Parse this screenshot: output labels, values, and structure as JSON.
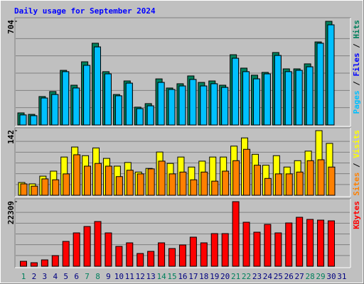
{
  "chart_data": [
    {
      "type": "bar",
      "title": "Daily usage for September 2024",
      "legend_separator": " / ",
      "ylim": [
        0,
        704
      ],
      "yticks": [
        704
      ],
      "series": [
        {
          "name": "Hits",
          "color": "#00805c",
          "values": [
            82,
            72,
            193,
            227,
            371,
            270,
            429,
            555,
            362,
            207,
            299,
            121,
            145,
            313,
            251,
            280,
            333,
            289,
            299,
            270,
            477,
            386,
            338,
            357,
            492,
            381,
            381,
            415,
            564,
            704,
            0
          ]
        },
        {
          "name": "Files",
          "color": "#0000ff",
          "values": [
            68,
            63,
            183,
            207,
            362,
            251,
            405,
            530,
            347,
            198,
            284,
            111,
            130,
            289,
            241,
            265,
            309,
            265,
            280,
            255,
            453,
            362,
            313,
            347,
            472,
            362,
            371,
            395,
            555,
            680,
            0
          ]
        },
        {
          "name": "Pages",
          "color": "#00c0ff",
          "values": [
            68,
            63,
            183,
            207,
            362,
            251,
            405,
            530,
            347,
            198,
            284,
            111,
            130,
            289,
            241,
            265,
            309,
            265,
            280,
            255,
            453,
            362,
            313,
            347,
            472,
            362,
            371,
            395,
            555,
            680,
            0
          ]
        }
      ]
    },
    {
      "type": "bar",
      "legend_separator": " / ",
      "ylim": [
        0,
        142
      ],
      "yticks": [
        142
      ],
      "series": [
        {
          "name": "Visits",
          "color": "#ffff00",
          "values": [
            28,
            25,
            42,
            53,
            84,
            106,
            87,
            104,
            81,
            64,
            72,
            51,
            59,
            95,
            70,
            84,
            62,
            75,
            84,
            84,
            108,
            126,
            90,
            66,
            87,
            62,
            76,
            97,
            142,
            114,
            0
          ]
        },
        {
          "name": "Sites",
          "color": "#ff8000",
          "values": [
            25,
            20,
            36,
            34,
            47,
            89,
            64,
            70,
            64,
            41,
            55,
            47,
            58,
            75,
            47,
            51,
            34,
            51,
            31,
            53,
            76,
            101,
            66,
            37,
            47,
            47,
            51,
            76,
            78,
            62,
            0
          ]
        }
      ]
    },
    {
      "type": "bar",
      "ylim": [
        0,
        22309
      ],
      "yticks": [
        22309
      ],
      "categories": [
        "1",
        "2",
        "3",
        "4",
        "5",
        "6",
        "7",
        "8",
        "9",
        "10",
        "11",
        "12",
        "13",
        "14",
        "15",
        "16",
        "17",
        "18",
        "19",
        "20",
        "21",
        "22",
        "23",
        "24",
        "25",
        "26",
        "27",
        "28",
        "29",
        "30",
        "31"
      ],
      "category_colors": [
        "#00805c",
        "#000080",
        "#000080",
        "#000080",
        "#000080",
        "#000080",
        "#00805c",
        "#00805c",
        "#000080",
        "#000080",
        "#000080",
        "#000080",
        "#000080",
        "#00805c",
        "#00805c",
        "#000080",
        "#000080",
        "#000080",
        "#000080",
        "#000080",
        "#00805c",
        "#00805c",
        "#000080",
        "#000080",
        "#000080",
        "#000080",
        "#000080",
        "#00805c",
        "#00805c",
        "#000080",
        "#000080"
      ],
      "series": [
        {
          "name": "KBytes",
          "color": "#ff0000",
          "values": [
            1716,
            1226,
            2206,
            3677,
            8580,
            11522,
            13728,
            15445,
            11522,
            6864,
            8090,
            4413,
            5148,
            8090,
            6129,
            7355,
            10051,
            8090,
            11277,
            11277,
            22309,
            15200,
            11767,
            14464,
            11522,
            14954,
            16916,
            16180,
            15935,
            15690,
            0
          ]
        }
      ]
    }
  ]
}
